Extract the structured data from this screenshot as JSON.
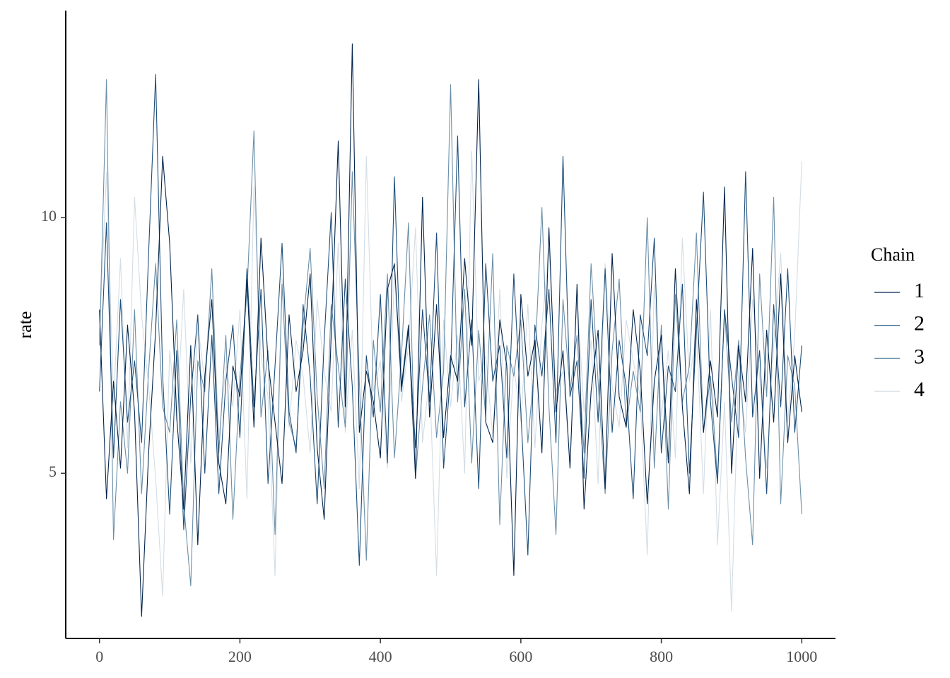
{
  "chart_data": {
    "type": "line",
    "y_label": "rate",
    "legend_title": "Chain",
    "legend": "right",
    "xlim": [
      -48,
      1048
    ],
    "ylim": [
      1.77,
      14.05
    ],
    "xticks": [
      0,
      200,
      400,
      600,
      800,
      1000
    ],
    "yticks": [
      5,
      10
    ],
    "x": [
      0,
      10,
      20,
      30,
      40,
      50,
      60,
      70,
      80,
      90,
      100,
      110,
      120,
      130,
      140,
      150,
      160,
      170,
      180,
      190,
      200,
      210,
      220,
      230,
      240,
      250,
      260,
      270,
      280,
      290,
      300,
      310,
      320,
      330,
      340,
      350,
      360,
      370,
      380,
      390,
      400,
      410,
      420,
      430,
      440,
      450,
      460,
      470,
      480,
      490,
      500,
      510,
      520,
      530,
      540,
      550,
      560,
      570,
      580,
      590,
      600,
      610,
      620,
      630,
      640,
      650,
      660,
      670,
      680,
      690,
      700,
      710,
      720,
      730,
      740,
      750,
      760,
      770,
      780,
      790,
      800,
      810,
      820,
      830,
      840,
      850,
      860,
      870,
      880,
      890,
      900,
      910,
      920,
      930,
      940,
      950,
      960,
      970,
      980,
      990,
      1000
    ],
    "series": [
      {
        "name": "1",
        "color": "#03254c",
        "values": [
          8.2,
          4.5,
          6.8,
          5.1,
          7.9,
          6.2,
          2.2,
          5.4,
          7.8,
          11.2,
          9.5,
          6.1,
          4.3,
          7.5,
          3.6,
          6.9,
          8.4,
          5.2,
          4.4,
          7.1,
          6.5,
          8.8,
          5.9,
          9.6,
          7.2,
          6.0,
          4.8,
          8.1,
          6.6,
          7.4,
          8.9,
          5.5,
          4.1,
          7.7,
          11.5,
          6.3,
          13.4,
          5.8,
          7.0,
          6.4,
          5.3,
          8.6,
          9.1,
          6.7,
          7.9,
          4.9,
          10.4,
          6.1,
          8.3,
          5.7,
          7.3,
          6.8,
          9.2,
          7.5,
          12.7,
          6.0,
          5.6,
          8.0,
          7.1,
          3.0,
          8.5,
          6.9,
          7.6,
          5.4,
          9.8,
          6.2,
          7.4,
          5.1,
          8.7,
          4.3,
          6.6,
          7.8,
          4.7,
          9.3,
          6.5,
          5.9,
          8.2,
          7.0,
          4.4,
          6.8,
          7.7,
          5.2,
          9.0,
          6.3,
          4.6,
          8.4,
          5.8,
          7.2,
          6.1,
          10.6,
          5.0,
          7.5,
          6.4,
          9.4,
          4.9,
          7.8,
          6.0,
          8.9,
          5.6,
          7.3,
          6.2
        ]
      },
      {
        "name": "2",
        "color": "#1d4e7a",
        "values": [
          6.6,
          9.9,
          5.3,
          8.4,
          6.0,
          7.2,
          5.6,
          9.3,
          12.8,
          6.9,
          4.2,
          7.4,
          3.9,
          6.5,
          8.1,
          5.0,
          7.7,
          4.6,
          6.8,
          7.9,
          5.7,
          9.0,
          6.3,
          8.6,
          4.8,
          7.1,
          9.5,
          6.2,
          5.4,
          8.3,
          6.9,
          4.4,
          7.6,
          10.1,
          5.9,
          8.8,
          6.7,
          3.2,
          7.3,
          6.1,
          8.5,
          5.2,
          10.8,
          6.6,
          7.8,
          5.5,
          8.2,
          6.4,
          9.7,
          5.1,
          7.0,
          11.6,
          6.3,
          8.0,
          4.7,
          9.1,
          6.8,
          7.5,
          5.3,
          8.9,
          6.2,
          3.4,
          7.9,
          6.9,
          8.6,
          5.6,
          11.2,
          6.5,
          7.2,
          4.9,
          8.4,
          6.0,
          9.0,
          5.8,
          7.6,
          6.7,
          4.5,
          8.1,
          7.3,
          9.6,
          5.4,
          7.1,
          6.6,
          8.7,
          5.0,
          7.8,
          10.5,
          6.4,
          4.8,
          8.2,
          6.9,
          5.7,
          10.9,
          6.1,
          7.4,
          4.6,
          8.3,
          6.3,
          9.0,
          5.8,
          7.5
        ]
      },
      {
        "name": "3",
        "color": "#6b8fa8",
        "values": [
          7.5,
          12.7,
          3.7,
          6.4,
          5.0,
          8.2,
          4.6,
          7.0,
          9.1,
          6.3,
          5.8,
          8.0,
          4.4,
          2.8,
          7.2,
          6.6,
          9.0,
          5.4,
          7.7,
          4.1,
          6.9,
          8.5,
          11.7,
          6.1,
          7.4,
          3.8,
          8.7,
          6.0,
          5.5,
          7.9,
          9.4,
          6.5,
          4.7,
          8.3,
          7.1,
          5.9,
          10.9,
          6.8,
          3.3,
          7.6,
          6.2,
          8.9,
          5.3,
          7.3,
          9.9,
          4.9,
          6.7,
          8.1,
          5.7,
          7.0,
          12.6,
          6.4,
          8.6,
          5.2,
          7.8,
          6.1,
          9.3,
          4.0,
          7.5,
          6.9,
          8.0,
          5.6,
          7.2,
          10.2,
          6.3,
          3.8,
          8.4,
          6.6,
          7.7,
          5.4,
          9.1,
          6.8,
          4.6,
          7.4,
          8.8,
          5.9,
          7.0,
          6.2,
          10.0,
          5.1,
          7.9,
          4.3,
          8.5,
          6.4,
          7.1,
          9.7,
          5.8,
          6.9,
          4.9,
          8.2,
          6.0,
          7.6,
          5.3,
          3.6,
          8.9,
          6.5,
          10.4,
          4.4,
          7.3,
          6.7,
          4.2
        ]
      },
      {
        "name": "4",
        "color": "#d3dde5",
        "values": [
          7.7,
          10.9,
          6.4,
          9.2,
          5.5,
          10.4,
          8.1,
          6.7,
          4.9,
          2.6,
          7.4,
          6.0,
          8.6,
          5.2,
          7.9,
          6.8,
          9.0,
          5.7,
          7.1,
          6.3,
          8.2,
          4.5,
          10.6,
          7.3,
          6.5,
          3.0,
          8.8,
          5.9,
          7.6,
          6.9,
          5.4,
          8.4,
          7.0,
          6.2,
          9.5,
          5.8,
          7.8,
          4.7,
          11.2,
          6.6,
          7.2,
          5.1,
          8.9,
          6.4,
          7.5,
          9.8,
          5.6,
          6.9,
          3.0,
          8.0,
          6.3,
          7.7,
          5.0,
          11.3,
          6.8,
          7.3,
          5.7,
          8.6,
          4.9,
          7.1,
          6.0,
          8.3,
          5.5,
          7.9,
          9.4,
          6.6,
          7.0,
          5.2,
          8.5,
          6.2,
          7.6,
          4.8,
          9.1,
          6.7,
          5.9,
          8.0,
          7.2,
          6.5,
          3.4,
          8.7,
          6.1,
          7.4,
          5.3,
          9.6,
          6.8,
          7.8,
          4.6,
          8.2,
          3.6,
          6.4,
          2.3,
          7.0,
          5.8,
          8.4,
          6.9,
          5.1,
          7.5,
          9.3,
          6.0,
          7.7,
          11.1
        ]
      }
    ]
  }
}
